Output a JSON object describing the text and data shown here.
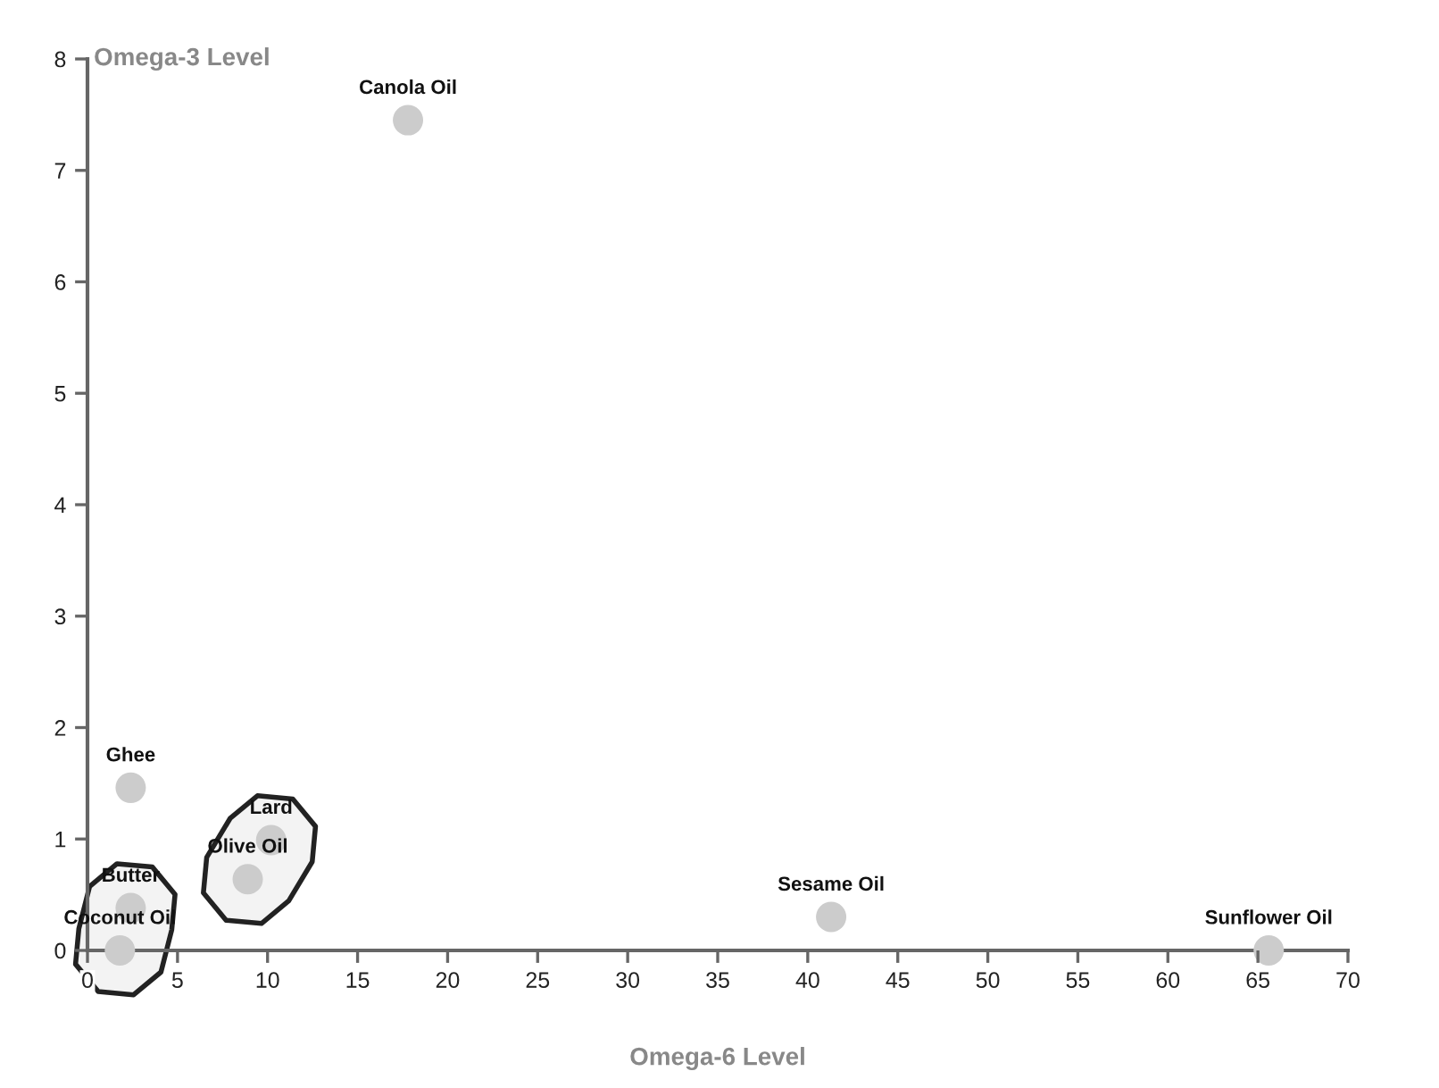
{
  "chart_data": {
    "type": "scatter",
    "xlabel": "Omega-6 Level",
    "ylabel": "Omega-3 Level",
    "xlim": [
      0,
      70
    ],
    "xticks": [
      0,
      5,
      10,
      15,
      20,
      25,
      30,
      35,
      40,
      45,
      50,
      55,
      60,
      65,
      70
    ],
    "ylim": [
      0,
      8
    ],
    "yticks": [
      0,
      1,
      2,
      3,
      4,
      5,
      6,
      7,
      8
    ],
    "grid": false,
    "marker": "circle",
    "series": [
      {
        "color": "#cccccc",
        "x": [
          17.8,
          2.4,
          41.3,
          65.6
        ],
        "values": [
          7.45,
          1.46,
          0.3,
          0
        ]
      },
      {
        "color": "#cccccc",
        "x": [
          2.4,
          1.8
        ],
        "values": [
          0.38,
          0
        ]
      },
      {
        "color": "#cccccc",
        "x": [
          10.2,
          8.9
        ],
        "values": [
          0.99,
          0.64
        ]
      }
    ],
    "annotations": [
      {
        "text": "Canola Oil",
        "x": 17.8,
        "y": 7.45
      },
      {
        "text": "Ghee",
        "x": 2.4,
        "y": 1.46
      },
      {
        "text": "Sesame Oil",
        "x": 41.3,
        "y": 0.3
      },
      {
        "text": "Sunflower Oil",
        "x": 65.6,
        "y": 0
      },
      {
        "text": "Butter",
        "x": 2.4,
        "y": 0.38
      },
      {
        "text": "Coconut Oil",
        "x": 1.8,
        "y": 0
      },
      {
        "text": "Lard",
        "x": 10.2,
        "y": 0.99
      },
      {
        "text": "Olive Oil",
        "x": 8.9,
        "y": 0.64
      }
    ]
  }
}
